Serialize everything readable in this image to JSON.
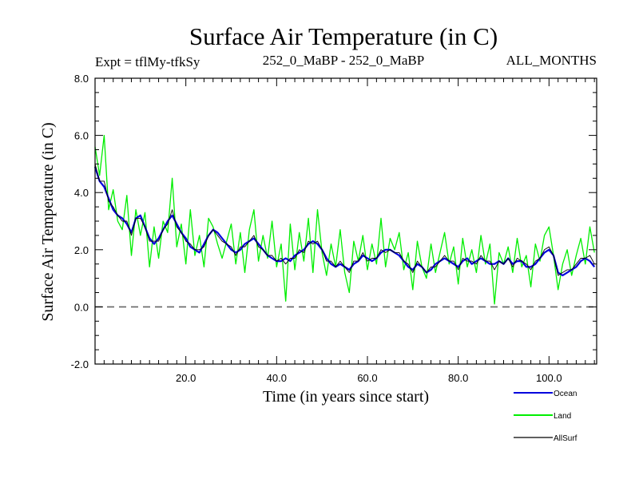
{
  "chart_data": {
    "type": "line",
    "title": "Surface Air Temperature (in C)",
    "subtitle_left": "Expt = tflMy-tfkSy",
    "subtitle_center": "252_0_MaBP - 252_0_MaBP",
    "subtitle_right": "ALL_MONTHS",
    "xlabel": "Time (in years since start)",
    "ylabel": "Surface Air Temperature (in C)",
    "xlim": [
      0,
      110.5
    ],
    "ylim": [
      -2.0,
      8.0
    ],
    "x_ticks": [
      20,
      40,
      60,
      80,
      100
    ],
    "x_tick_labels": [
      "20.0",
      "40.0",
      "60.0",
      "80.0",
      "100.0"
    ],
    "y_ticks": [
      -2,
      0,
      2,
      4,
      6,
      8
    ],
    "y_tick_labels": [
      "-2.0",
      "0.0",
      "2.0",
      "4.0",
      "6.0",
      "8.0"
    ],
    "reference_line": 0.0,
    "legend_position": "bottom-right",
    "series": [
      {
        "name": "Land",
        "color": "#00ee00",
        "x": [
          0,
          1,
          2,
          3,
          4,
          5,
          6,
          7,
          8,
          9,
          10,
          11,
          12,
          13,
          14,
          15,
          16,
          17,
          18,
          19,
          20,
          21,
          22,
          23,
          24,
          25,
          26,
          27,
          28,
          29,
          30,
          31,
          32,
          33,
          34,
          35,
          36,
          37,
          38,
          39,
          40,
          41,
          42,
          43,
          44,
          45,
          46,
          47,
          48,
          49,
          50,
          51,
          52,
          53,
          54,
          55,
          56,
          57,
          58,
          59,
          60,
          61,
          62,
          63,
          64,
          65,
          66,
          67,
          68,
          69,
          70,
          71,
          72,
          73,
          74,
          75,
          76,
          77,
          78,
          79,
          80,
          81,
          82,
          83,
          84,
          85,
          86,
          87,
          88,
          89,
          90,
          91,
          92,
          93,
          94,
          95,
          96,
          97,
          98,
          99,
          100,
          101,
          102,
          103,
          104,
          105,
          106,
          107,
          108,
          109,
          110
        ],
        "values": [
          5.6,
          4.6,
          6.0,
          3.4,
          4.1,
          3.0,
          2.7,
          3.9,
          1.8,
          3.4,
          2.5,
          3.3,
          1.4,
          2.8,
          1.7,
          3.0,
          2.6,
          4.5,
          2.1,
          2.9,
          1.5,
          3.4,
          1.8,
          2.5,
          1.4,
          3.1,
          2.8,
          2.2,
          1.7,
          2.3,
          2.9,
          1.5,
          2.6,
          1.2,
          2.7,
          3.4,
          1.6,
          2.5,
          1.7,
          3.0,
          1.4,
          2.2,
          0.2,
          2.9,
          1.3,
          2.6,
          1.6,
          3.1,
          1.2,
          3.4,
          1.9,
          1.1,
          2.2,
          1.4,
          2.7,
          1.2,
          0.5,
          2.3,
          1.6,
          2.5,
          1.3,
          2.2,
          1.5,
          3.1,
          1.4,
          2.4,
          2.0,
          2.6,
          1.3,
          1.9,
          0.6,
          2.3,
          1.4,
          1.0,
          2.2,
          1.2,
          1.9,
          2.6,
          1.5,
          2.1,
          0.8,
          2.4,
          1.4,
          2.0,
          1.2,
          2.5,
          1.5,
          2.2,
          0.1,
          1.9,
          1.5,
          2.1,
          1.2,
          2.4,
          1.4,
          1.8,
          0.7,
          2.2,
          1.6,
          2.5,
          2.8,
          1.8,
          0.6,
          1.5,
          2.0,
          1.1,
          1.8,
          2.4,
          1.5,
          2.8,
          1.9
        ]
      },
      {
        "name": "Ocean",
        "color": "#0000dd",
        "x": [
          0,
          1,
          2,
          3,
          4,
          5,
          6,
          7,
          8,
          9,
          10,
          11,
          12,
          13,
          14,
          15,
          16,
          17,
          18,
          19,
          20,
          21,
          22,
          23,
          24,
          25,
          26,
          27,
          28,
          29,
          30,
          31,
          32,
          33,
          34,
          35,
          36,
          37,
          38,
          39,
          40,
          41,
          42,
          43,
          44,
          45,
          46,
          47,
          48,
          49,
          50,
          51,
          52,
          53,
          54,
          55,
          56,
          57,
          58,
          59,
          60,
          61,
          62,
          63,
          64,
          65,
          66,
          67,
          68,
          69,
          70,
          71,
          72,
          73,
          74,
          75,
          76,
          77,
          78,
          79,
          80,
          81,
          82,
          83,
          84,
          85,
          86,
          87,
          88,
          89,
          90,
          91,
          92,
          93,
          94,
          95,
          96,
          97,
          98,
          99,
          100,
          101,
          102,
          103,
          104,
          105,
          106,
          107,
          108,
          109,
          110
        ],
        "values": [
          4.9,
          4.4,
          4.2,
          3.8,
          3.4,
          3.2,
          3.1,
          2.9,
          2.6,
          3.1,
          3.2,
          2.8,
          2.4,
          2.2,
          2.4,
          2.7,
          3.0,
          3.2,
          2.9,
          2.6,
          2.4,
          2.1,
          2.0,
          1.9,
          2.2,
          2.5,
          2.7,
          2.6,
          2.4,
          2.2,
          2.0,
          1.9,
          2.0,
          2.2,
          2.3,
          2.4,
          2.2,
          2.0,
          1.8,
          1.7,
          1.6,
          1.6,
          1.7,
          1.6,
          1.8,
          1.9,
          2.0,
          2.2,
          2.3,
          2.2,
          2.0,
          1.7,
          1.5,
          1.4,
          1.5,
          1.4,
          1.3,
          1.5,
          1.6,
          1.8,
          1.7,
          1.6,
          1.7,
          1.9,
          2.0,
          2.0,
          1.9,
          1.8,
          1.6,
          1.4,
          1.3,
          1.5,
          1.4,
          1.2,
          1.3,
          1.5,
          1.6,
          1.7,
          1.6,
          1.5,
          1.4,
          1.6,
          1.7,
          1.5,
          1.6,
          1.7,
          1.6,
          1.5,
          1.5,
          1.6,
          1.5,
          1.7,
          1.5,
          1.6,
          1.6,
          1.4,
          1.4,
          1.5,
          1.7,
          1.9,
          2.0,
          1.8,
          1.2,
          1.1,
          1.2,
          1.3,
          1.4,
          1.6,
          1.7,
          1.6,
          1.4
        ]
      },
      {
        "name": "AllSurf",
        "color": "#000000",
        "x": [
          0,
          1,
          2,
          3,
          4,
          5,
          6,
          7,
          8,
          9,
          10,
          11,
          12,
          13,
          14,
          15,
          16,
          17,
          18,
          19,
          20,
          21,
          22,
          23,
          24,
          25,
          26,
          27,
          28,
          29,
          30,
          31,
          32,
          33,
          34,
          35,
          36,
          37,
          38,
          39,
          40,
          41,
          42,
          43,
          44,
          45,
          46,
          47,
          48,
          49,
          50,
          51,
          52,
          53,
          54,
          55,
          56,
          57,
          58,
          59,
          60,
          61,
          62,
          63,
          64,
          65,
          66,
          67,
          68,
          69,
          70,
          71,
          72,
          73,
          74,
          75,
          76,
          77,
          78,
          79,
          80,
          81,
          82,
          83,
          84,
          85,
          86,
          87,
          88,
          89,
          90,
          91,
          92,
          93,
          94,
          95,
          96,
          97,
          98,
          99,
          100,
          101,
          102,
          103,
          104,
          105,
          106,
          107,
          108,
          109,
          110
        ],
        "values": [
          5.0,
          4.4,
          4.4,
          3.7,
          3.5,
          3.2,
          3.0,
          3.0,
          2.5,
          3.1,
          3.1,
          2.8,
          2.3,
          2.3,
          2.3,
          2.7,
          2.9,
          3.4,
          2.8,
          2.6,
          2.3,
          2.2,
          2.0,
          2.0,
          2.1,
          2.5,
          2.7,
          2.5,
          2.3,
          2.2,
          2.1,
          1.8,
          2.1,
          2.1,
          2.3,
          2.5,
          2.1,
          2.0,
          1.8,
          1.8,
          1.6,
          1.7,
          1.5,
          1.7,
          1.7,
          2.0,
          1.9,
          2.3,
          2.2,
          2.3,
          2.0,
          1.6,
          1.6,
          1.4,
          1.6,
          1.4,
          1.2,
          1.6,
          1.6,
          1.9,
          1.6,
          1.7,
          1.7,
          2.0,
          1.9,
          2.0,
          1.9,
          1.9,
          1.6,
          1.5,
          1.2,
          1.6,
          1.4,
          1.2,
          1.4,
          1.4,
          1.6,
          1.8,
          1.6,
          1.6,
          1.3,
          1.7,
          1.6,
          1.6,
          1.5,
          1.8,
          1.6,
          1.6,
          1.3,
          1.6,
          1.5,
          1.7,
          1.4,
          1.7,
          1.6,
          1.5,
          1.3,
          1.6,
          1.7,
          2.0,
          2.1,
          1.8,
          1.1,
          1.2,
          1.3,
          1.3,
          1.5,
          1.7,
          1.7,
          1.8,
          1.5
        ]
      }
    ]
  }
}
